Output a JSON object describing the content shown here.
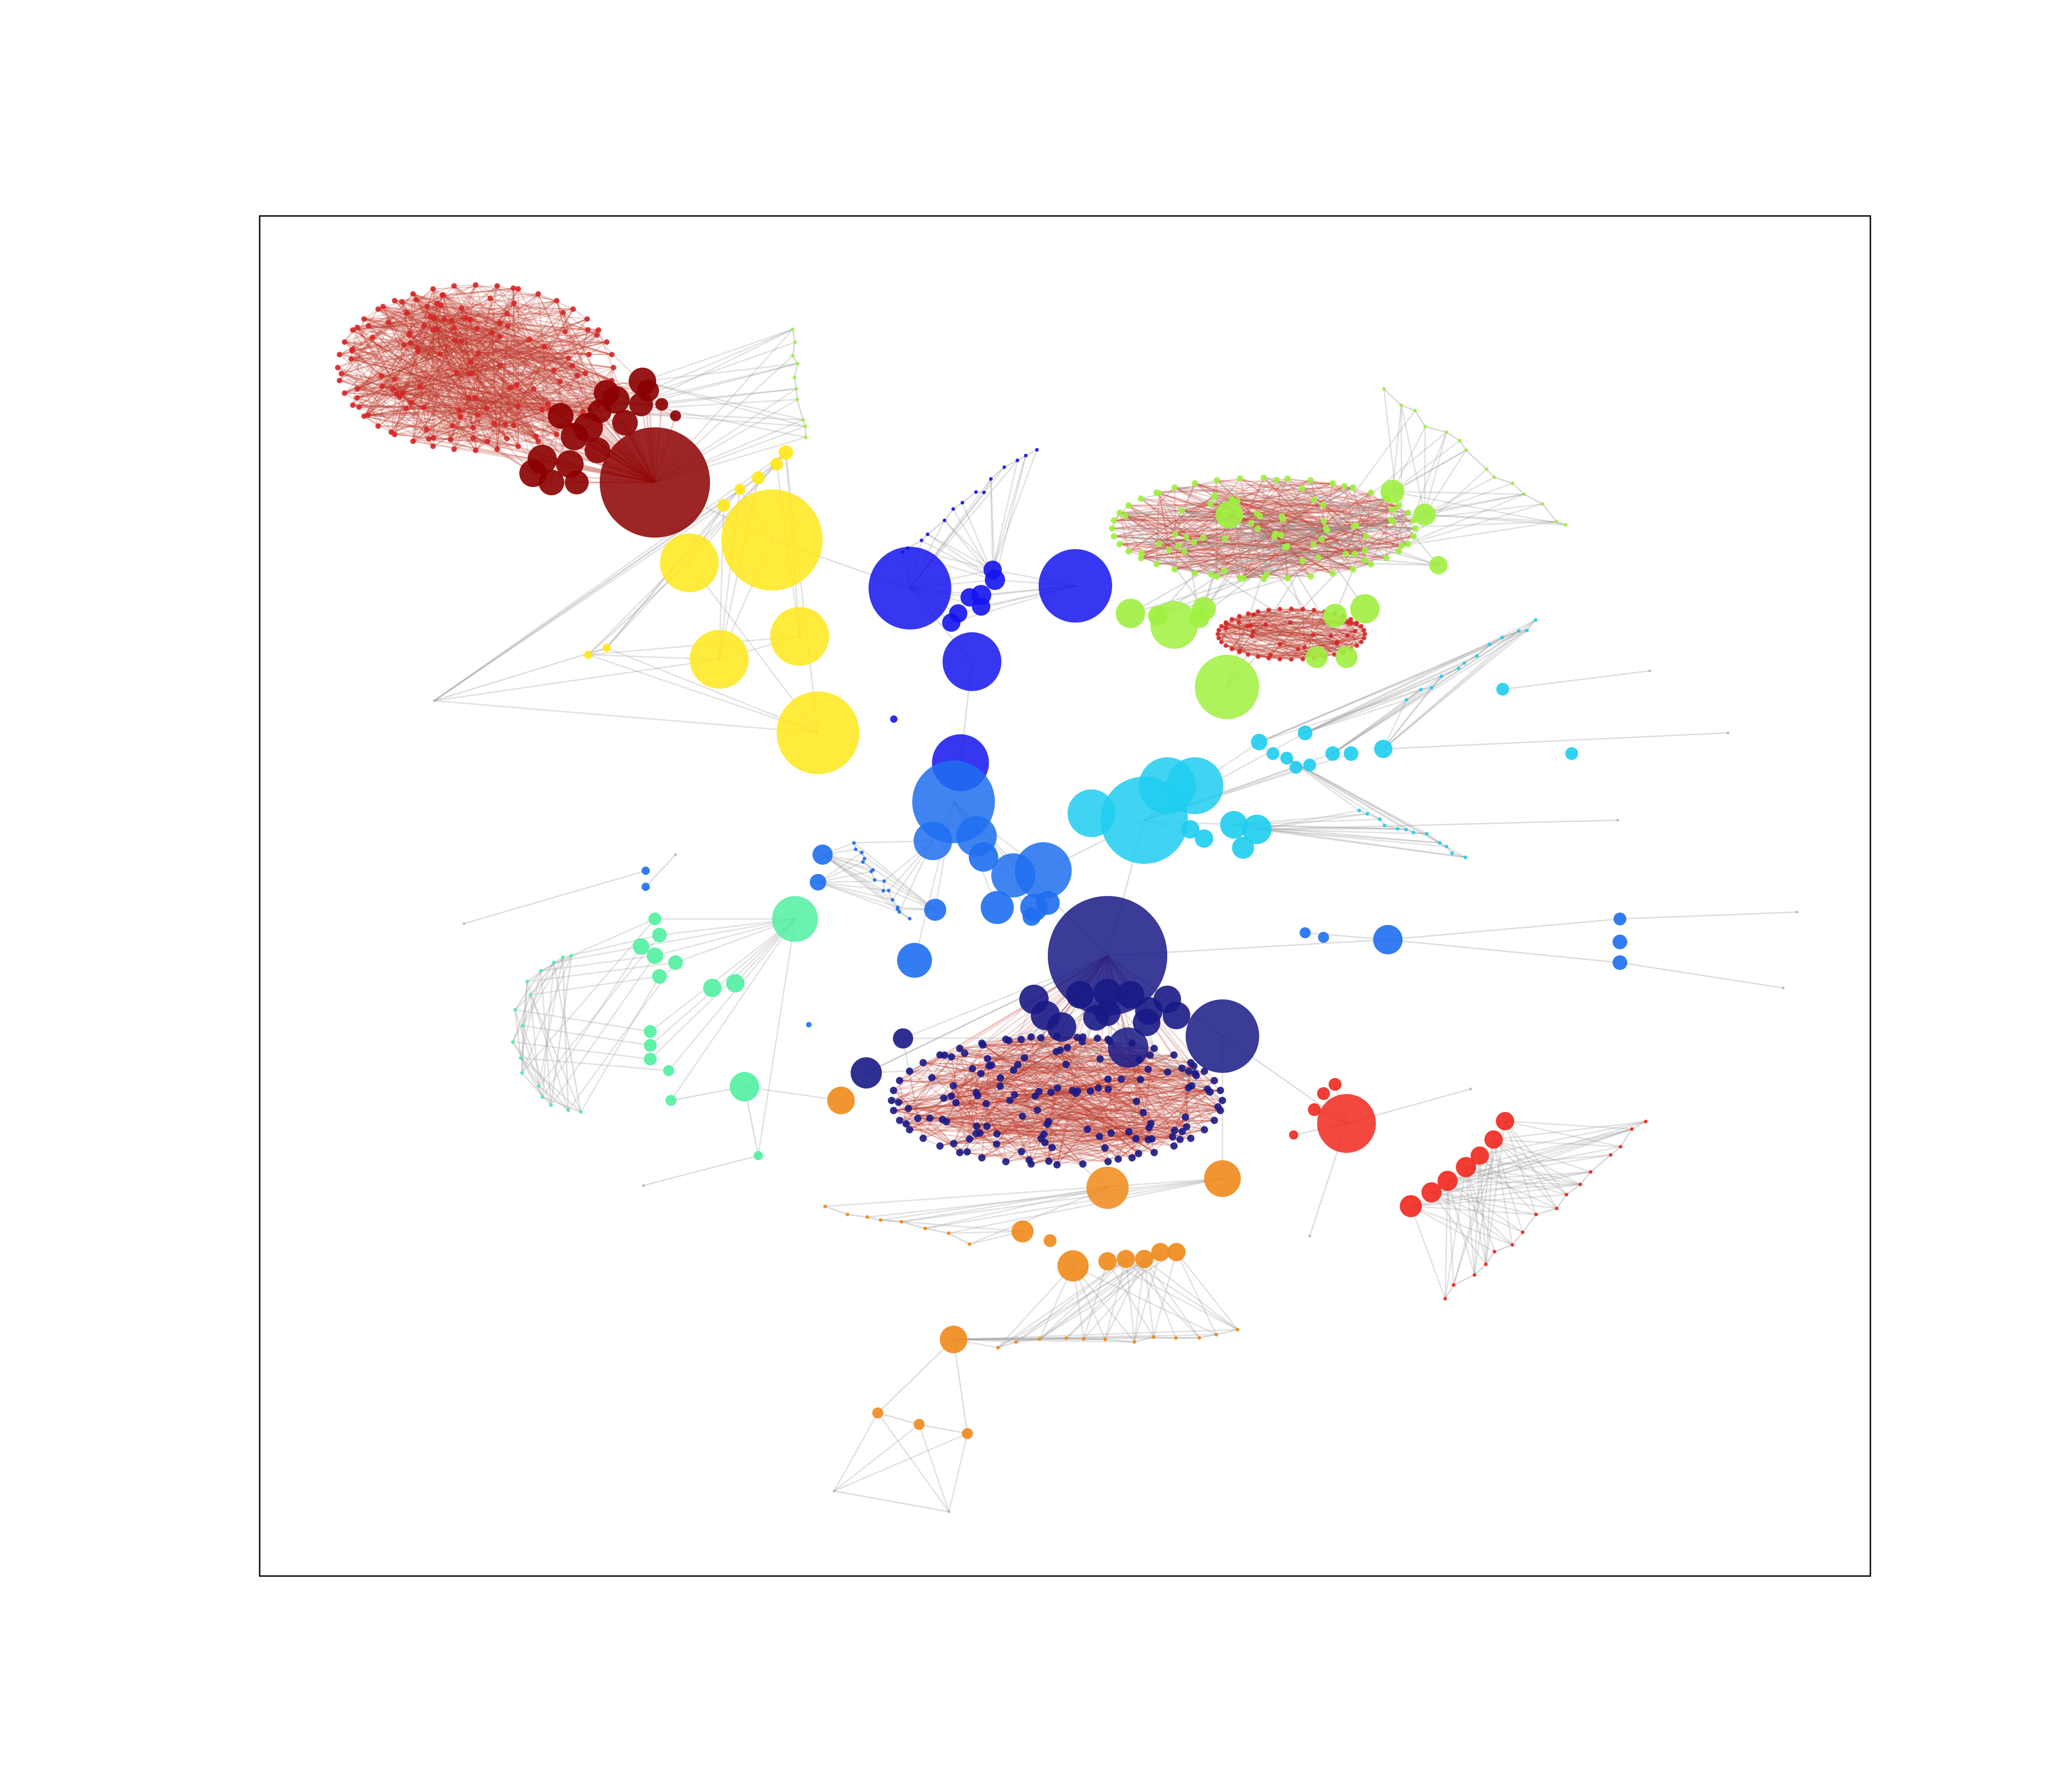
{
  "figure": {
    "type": "network-graph",
    "title": "",
    "edge_colors": {
      "intra_cluster": "#c0392b",
      "inter_cluster": "#9a9a9a"
    },
    "clusters": [
      {
        "id": "maroon",
        "color": "#8b0000"
      },
      {
        "id": "red-dense",
        "color": "#d62728"
      },
      {
        "id": "yellow",
        "color": "#ffe81a"
      },
      {
        "id": "blue",
        "color": "#1414f0"
      },
      {
        "id": "lime",
        "color": "#a0f040"
      },
      {
        "id": "cyan",
        "color": "#1ecdf0"
      },
      {
        "id": "mid-blue",
        "color": "#1e6ef0"
      },
      {
        "id": "mint",
        "color": "#50f0a0"
      },
      {
        "id": "navy",
        "color": "#191986"
      },
      {
        "id": "orange",
        "color": "#f08a1a"
      },
      {
        "id": "bright-red",
        "color": "#f0281e"
      },
      {
        "id": "grey-fan",
        "color": "#b4b4b4"
      }
    ]
  }
}
